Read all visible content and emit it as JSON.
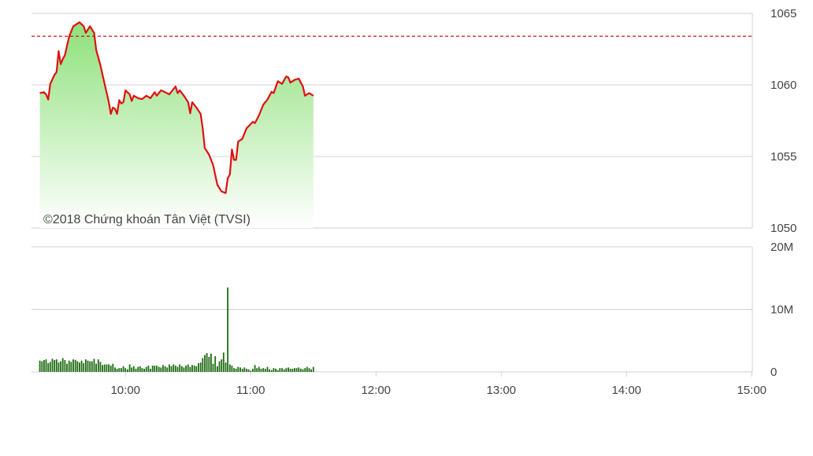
{
  "watermark": "©2018 Chứng khoán Tân Việt (TVSI)",
  "colors": {
    "line": "#e01010",
    "reference": "#d01010",
    "fill_top": "#8ee07a",
    "volume_bar": "#1e6b12",
    "grid": "#d0d0d8"
  },
  "chart_data": [
    {
      "type": "area",
      "ylim": [
        1050,
        1065
      ],
      "y_ticks": [
        "1065",
        "1060",
        "1055",
        "1050"
      ],
      "y_tick_values": [
        1065,
        1060,
        1055,
        1050
      ],
      "reference_line": 1063.4,
      "grid": true,
      "x": [
        "9:19",
        "9:21",
        "9:22",
        "9:23",
        "9:24",
        "9:26",
        "9:27",
        "9:28",
        "9:29",
        "9:30",
        "9:31",
        "9:33",
        "9:35",
        "9:38",
        "9:40",
        "9:41",
        "9:43",
        "9:45",
        "9:46",
        "9:48",
        "9:50",
        "9:52",
        "9:53",
        "9:54",
        "9:55",
        "9:56",
        "9:57",
        "9:58",
        "9:59",
        "10:00",
        "10:02",
        "10:03",
        "10:04",
        "10:06",
        "10:08",
        "10:10",
        "10:12",
        "10:14",
        "10:15",
        "10:17",
        "10:19",
        "10:21",
        "10:24",
        "10:25",
        "10:26",
        "10:28",
        "10:30",
        "10:31",
        "10:32",
        "10:34",
        "10:36",
        "10:37",
        "10:38",
        "10:40",
        "10:42",
        "10:44",
        "10:46",
        "10:48",
        "10:49",
        "10:50",
        "10:51",
        "10:52",
        "10:53",
        "10:54",
        "10:56",
        "10:58",
        "11:01",
        "11:02",
        "11:04",
        "11:06",
        "11:08",
        "11:10",
        "11:11",
        "11:13",
        "11:15",
        "11:17",
        "11:18",
        "11:19",
        "11:21",
        "11:23",
        "11:25",
        "11:26",
        "11:28",
        "11:30"
      ],
      "values": [
        1059.43,
        1059.49,
        1059.34,
        1058.97,
        1060.07,
        1060.71,
        1060.9,
        1062.36,
        1061.45,
        1061.81,
        1062.09,
        1063.37,
        1064.1,
        1064.38,
        1064.1,
        1063.64,
        1064.1,
        1063.64,
        1062.45,
        1061.36,
        1060.07,
        1058.79,
        1057.97,
        1058.42,
        1058.33,
        1057.97,
        1058.94,
        1058.7,
        1058.79,
        1059.62,
        1059.34,
        1058.88,
        1059.25,
        1059.07,
        1059.01,
        1059.25,
        1059.07,
        1059.49,
        1059.25,
        1059.62,
        1059.49,
        1059.34,
        1059.89,
        1059.43,
        1059.62,
        1059.25,
        1058.79,
        1058.02,
        1058.79,
        1058.42,
        1057.97,
        1056.96,
        1055.59,
        1055.13,
        1054.4,
        1053.02,
        1052.56,
        1052.44,
        1053.48,
        1053.75,
        1055.49,
        1054.76,
        1054.76,
        1056.04,
        1056.23,
        1056.96,
        1057.42,
        1057.33,
        1057.88,
        1058.61,
        1058.97,
        1059.52,
        1059.43,
        1060.26,
        1060.07,
        1060.59,
        1060.53,
        1060.16,
        1060.35,
        1060.44,
        1059.89,
        1059.25,
        1059.43,
        1059.25
      ]
    },
    {
      "type": "bar",
      "ylim": [
        0,
        20
      ],
      "y_ticks": [
        "20M",
        "10M",
        "0"
      ],
      "y_tick_values": [
        20,
        10,
        0
      ],
      "grid": true,
      "unit": "M",
      "first_bar_time": "9:19",
      "bar_interval_minutes": 1,
      "values": [
        1.8,
        1.7,
        1.9,
        2.0,
        1.4,
        1.6,
        2.1,
        1.9,
        2.0,
        1.5,
        1.7,
        2.2,
        1.9,
        1.3,
        1.8,
        1.6,
        2.0,
        1.9,
        1.7,
        1.5,
        1.8,
        1.4,
        2.0,
        1.8,
        1.7,
        1.7,
        2.1,
        1.3,
        2.0,
        1.6,
        1.1,
        1.2,
        1.2,
        1.2,
        1.0,
        1.3,
        0.7,
        0.5,
        0.6,
        0.6,
        0.9,
        0.6,
        0.4,
        1.2,
        0.7,
        0.9,
        0.5,
        0.8,
        0.9,
        0.6,
        0.5,
        0.8,
        1.0,
        0.5,
        1.0,
        1.0,
        1.0,
        0.8,
        0.7,
        1.1,
        0.9,
        0.7,
        1.2,
        0.9,
        1.2,
        1.0,
        0.8,
        1.2,
        0.9,
        0.7,
        1.0,
        1.2,
        0.8,
        1.1,
        1.0,
        0.9,
        1.4,
        1.5,
        2.2,
        2.7,
        3.0,
        2.4,
        2.9,
        1.3,
        2.5,
        0.9,
        1.7,
        2.0,
        3.1,
        1.5,
        13.5,
        1.2,
        1.0,
        0.6,
        0.5,
        0.8,
        0.7,
        0.5,
        0.7,
        0.5,
        0.4,
        0.2,
        0.5,
        1.1,
        0.6,
        0.8,
        0.5,
        0.6,
        0.5,
        0.8,
        0.4,
        0.3,
        0.6,
        0.5,
        0.3,
        0.6,
        0.6,
        0.4,
        0.6,
        0.7,
        0.5,
        0.5,
        0.6,
        0.6,
        0.7,
        0.5,
        0.4,
        0.6,
        0.8,
        0.6,
        0.4,
        0.8
      ]
    }
  ],
  "x_axis": {
    "ticks": [
      "10:00",
      "11:00",
      "12:00",
      "13:00",
      "14:00",
      "15:00"
    ]
  }
}
